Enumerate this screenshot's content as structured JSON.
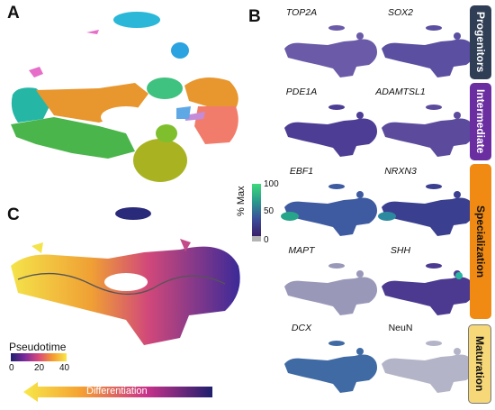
{
  "panels": {
    "a": "A",
    "b": "B",
    "c": "C"
  },
  "genes": [
    "TOP2A",
    "SOX2",
    "PDE1A",
    "ADAMTSL1",
    "EBF1",
    "NRXN3",
    "MAPT",
    "SHH",
    "DCX",
    "NeuN"
  ],
  "stages": [
    {
      "label": "Progenitors",
      "bg": "#2f3e55",
      "fg": "#ffffff"
    },
    {
      "label": "Intermediate",
      "bg": "#6a2ea0",
      "fg": "#ffffff"
    },
    {
      "label": "Specialization",
      "bg": "#f08a12",
      "fg": "#111111"
    },
    {
      "label": "Maturation",
      "bg": "#f6d878",
      "fg": "#111111"
    }
  ],
  "expression_colorbar": {
    "title": "% Max",
    "ticks": [
      "100",
      "50",
      "0"
    ]
  },
  "pseudotime": {
    "title": "Pseudotime",
    "ticks": [
      "0",
      "20",
      "40"
    ]
  },
  "arrow": {
    "label": "Differentiation"
  },
  "colors": {
    "cluster_orange": "#e8962e",
    "cluster_green": "#4ab54a",
    "cluster_salmon": "#f27c6c",
    "cluster_olive": "#a9b322",
    "cluster_teal": "#25b6a6",
    "cluster_cyan": "#2ab7d8",
    "cluster_mint": "#3fc17f",
    "cluster_pink": "#e66ec9"
  }
}
